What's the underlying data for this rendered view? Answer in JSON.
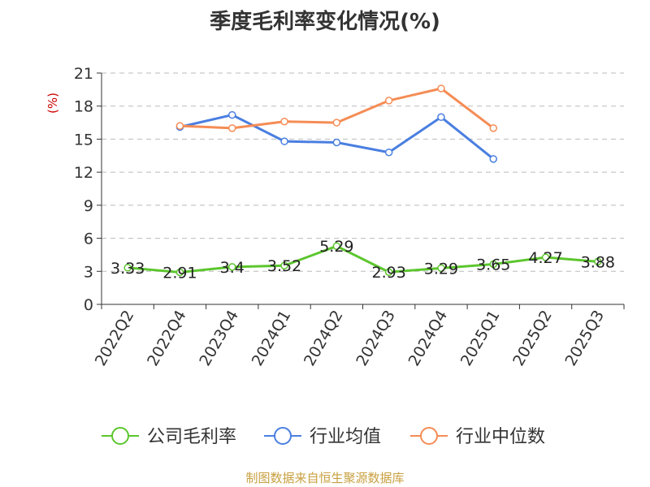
{
  "chart_data": {
    "type": "line",
    "title": "季度毛利率变化情况(%)",
    "ylabel": "(%)",
    "xlabel": "",
    "categories": [
      "2022Q2",
      "2022Q4",
      "2023Q4",
      "2024Q1",
      "2024Q2",
      "2024Q3",
      "2024Q4",
      "2025Q1",
      "2025Q2",
      "2025Q3"
    ],
    "ylim": [
      0,
      21
    ],
    "yticks": [
      0,
      3,
      6,
      9,
      12,
      15,
      18,
      21
    ],
    "grid": true,
    "legend_position": "bottom",
    "series": [
      {
        "name": "公司毛利率",
        "color": "#5cc62e",
        "values": [
          3.33,
          2.91,
          3.4,
          3.52,
          5.29,
          2.93,
          3.29,
          3.65,
          4.27,
          3.88
        ],
        "labels": [
          "3.33",
          "2.91",
          "3.4",
          "3.52",
          "5.29",
          "2.93",
          "3.29",
          "3.65",
          "4.27",
          "3.88"
        ]
      },
      {
        "name": "行业均值",
        "color": "#4a7fe0",
        "values": [
          null,
          16.1,
          17.2,
          14.8,
          14.7,
          13.8,
          17.0,
          13.2,
          null,
          null
        ]
      },
      {
        "name": "行业中位数",
        "color": "#f58c55",
        "values": [
          null,
          16.2,
          16.0,
          16.6,
          16.5,
          18.5,
          19.6,
          16.0,
          null,
          null
        ]
      }
    ]
  },
  "source_note": "制图数据来自恒生聚源数据库"
}
